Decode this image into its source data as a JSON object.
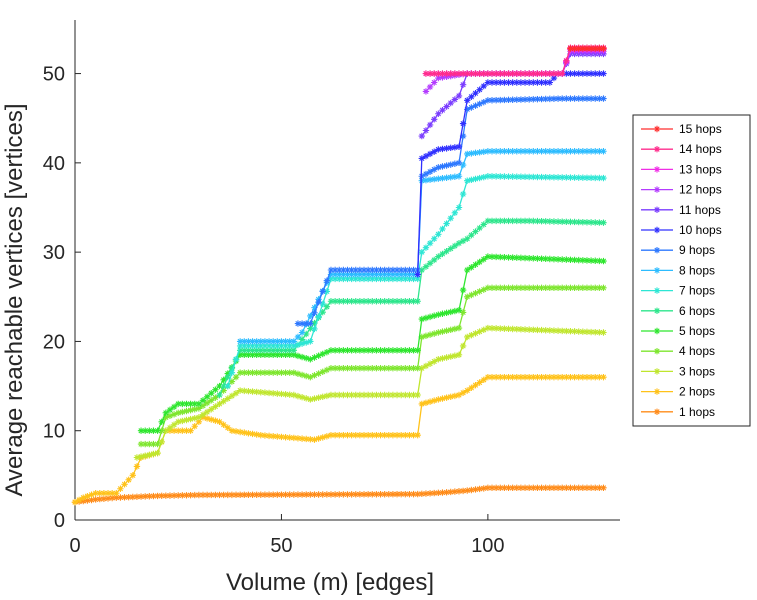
{
  "chart_data": {
    "type": "line",
    "xlabel": "Volume (m) [edges]",
    "ylabel": "Average reachable vertices [vertices]",
    "xlim": [
      0,
      132
    ],
    "ylim": [
      0,
      56
    ],
    "xticks": [
      0,
      50,
      100
    ],
    "yticks": [
      0,
      10,
      20,
      30,
      40,
      50
    ],
    "grid": false,
    "legend_position": "right",
    "marker": "asterisk",
    "series": [
      {
        "name": "15 hops",
        "color": "#ff2d2d",
        "points": [
          [
            120,
            52.8
          ],
          [
            128,
            52.8
          ]
        ]
      },
      {
        "name": "14 hops",
        "color": "#ff2d8c",
        "points": [
          [
            85,
            50
          ],
          [
            95,
            50
          ],
          [
            96,
            50
          ],
          [
            118,
            50
          ],
          [
            120,
            52.9
          ],
          [
            128,
            52.9
          ]
        ]
      },
      {
        "name": "13 hops",
        "color": "#f02ee6",
        "points": [
          [
            85,
            50
          ],
          [
            95,
            50
          ],
          [
            96,
            50
          ],
          [
            118,
            50
          ],
          [
            120,
            52.7
          ],
          [
            128,
            52.7
          ]
        ]
      },
      {
        "name": "12 hops",
        "color": "#b43cff",
        "points": [
          [
            85,
            48
          ],
          [
            88,
            49.5
          ],
          [
            95,
            50
          ],
          [
            118,
            50
          ],
          [
            120,
            52.5
          ],
          [
            128,
            52.5
          ]
        ]
      },
      {
        "name": "11 hops",
        "color": "#7a3cff",
        "points": [
          [
            84,
            43
          ],
          [
            88,
            45.5
          ],
          [
            93,
            47.5
          ],
          [
            95,
            50
          ],
          [
            118,
            50
          ],
          [
            120,
            52.2
          ],
          [
            128,
            52.2
          ]
        ]
      },
      {
        "name": "10 hops",
        "color": "#3030ff",
        "points": [
          [
            83,
            27.5
          ],
          [
            84,
            40.5
          ],
          [
            88,
            41.5
          ],
          [
            93,
            41.8
          ],
          [
            95,
            47
          ],
          [
            100,
            49
          ],
          [
            115,
            49
          ],
          [
            117,
            50
          ],
          [
            128,
            50
          ]
        ]
      },
      {
        "name": "9 hops",
        "color": "#2d78ff",
        "points": [
          [
            54,
            22
          ],
          [
            57,
            22
          ],
          [
            62,
            28
          ],
          [
            83,
            28
          ],
          [
            84,
            38.5
          ],
          [
            88,
            39.5
          ],
          [
            93,
            40
          ],
          [
            95,
            46
          ],
          [
            100,
            47
          ],
          [
            118,
            47.2
          ],
          [
            128,
            47.2
          ]
        ]
      },
      {
        "name": "8 hops",
        "color": "#2dbcff",
        "points": [
          [
            40,
            20
          ],
          [
            53,
            20
          ],
          [
            55,
            21
          ],
          [
            62,
            27.5
          ],
          [
            83,
            27.5
          ],
          [
            84,
            38
          ],
          [
            93,
            38.5
          ],
          [
            95,
            41
          ],
          [
            100,
            41.3
          ],
          [
            128,
            41.3
          ]
        ]
      },
      {
        "name": "7 hops",
        "color": "#2de6d4",
        "points": [
          [
            37,
            15
          ],
          [
            40,
            19.5
          ],
          [
            53,
            19.5
          ],
          [
            57,
            20
          ],
          [
            62,
            27
          ],
          [
            83,
            27
          ],
          [
            84,
            30
          ],
          [
            88,
            32
          ],
          [
            93,
            35
          ],
          [
            95,
            38
          ],
          [
            100,
            38.5
          ],
          [
            128,
            38.3
          ]
        ]
      },
      {
        "name": "6 hops",
        "color": "#2de68c",
        "points": [
          [
            35,
            14
          ],
          [
            40,
            19
          ],
          [
            53,
            19
          ],
          [
            62,
            24.5
          ],
          [
            83,
            24.5
          ],
          [
            84,
            28
          ],
          [
            88,
            29.5
          ],
          [
            93,
            31
          ],
          [
            95,
            31.5
          ],
          [
            100,
            33.5
          ],
          [
            110,
            33.5
          ],
          [
            128,
            33.3
          ]
        ]
      },
      {
        "name": "5 hops",
        "color": "#2ee62e",
        "points": [
          [
            16,
            10
          ],
          [
            20,
            10
          ],
          [
            22,
            12
          ],
          [
            25,
            13
          ],
          [
            30,
            13
          ],
          [
            35,
            15
          ],
          [
            40,
            18.5
          ],
          [
            53,
            18.5
          ],
          [
            57,
            18
          ],
          [
            62,
            19
          ],
          [
            83,
            19
          ],
          [
            84,
            22.5
          ],
          [
            88,
            23
          ],
          [
            93,
            23.5
          ],
          [
            95,
            28
          ],
          [
            100,
            29.5
          ],
          [
            128,
            29
          ]
        ]
      },
      {
        "name": "4 hops",
        "color": "#7ee62e",
        "points": [
          [
            16,
            8.5
          ],
          [
            20,
            8.5
          ],
          [
            22,
            11.5
          ],
          [
            25,
            12
          ],
          [
            30,
            12.5
          ],
          [
            35,
            14
          ],
          [
            40,
            16.5
          ],
          [
            53,
            16.5
          ],
          [
            57,
            16
          ],
          [
            62,
            17
          ],
          [
            83,
            17
          ],
          [
            84,
            20.5
          ],
          [
            88,
            21
          ],
          [
            93,
            21.5
          ],
          [
            95,
            25
          ],
          [
            100,
            26
          ],
          [
            128,
            26
          ]
        ]
      },
      {
        "name": "3 hops",
        "color": "#c0e62e",
        "points": [
          [
            15,
            7
          ],
          [
            20,
            7.5
          ],
          [
            22,
            10
          ],
          [
            25,
            11
          ],
          [
            30,
            11.5
          ],
          [
            35,
            13
          ],
          [
            40,
            14.5
          ],
          [
            53,
            14
          ],
          [
            57,
            13.5
          ],
          [
            62,
            14
          ],
          [
            83,
            14
          ],
          [
            84,
            17
          ],
          [
            88,
            18
          ],
          [
            93,
            18.5
          ],
          [
            95,
            20.5
          ],
          [
            100,
            21.5
          ],
          [
            128,
            21
          ]
        ]
      },
      {
        "name": "2 hops",
        "color": "#ffc21a",
        "points": [
          [
            0,
            2
          ],
          [
            2,
            2.5
          ],
          [
            5,
            3
          ],
          [
            10,
            3
          ],
          [
            14,
            5
          ],
          [
            16,
            7
          ],
          [
            20,
            7.5
          ],
          [
            22,
            10
          ],
          [
            28,
            10
          ],
          [
            31,
            11.5
          ],
          [
            35,
            11
          ],
          [
            38,
            10
          ],
          [
            45,
            9.5
          ],
          [
            58,
            9
          ],
          [
            62,
            9.5
          ],
          [
            83,
            9.5
          ],
          [
            84,
            13
          ],
          [
            88,
            13.5
          ],
          [
            93,
            14
          ],
          [
            95,
            14.5
          ],
          [
            100,
            16
          ],
          [
            128,
            16
          ]
        ]
      },
      {
        "name": "1 hops",
        "color": "#ff8c1a",
        "points": [
          [
            0,
            2
          ],
          [
            5,
            2.3
          ],
          [
            10,
            2.5
          ],
          [
            20,
            2.7
          ],
          [
            30,
            2.8
          ],
          [
            83,
            2.9
          ],
          [
            90,
            3.1
          ],
          [
            95,
            3.3
          ],
          [
            100,
            3.6
          ],
          [
            128,
            3.6
          ]
        ]
      }
    ]
  }
}
